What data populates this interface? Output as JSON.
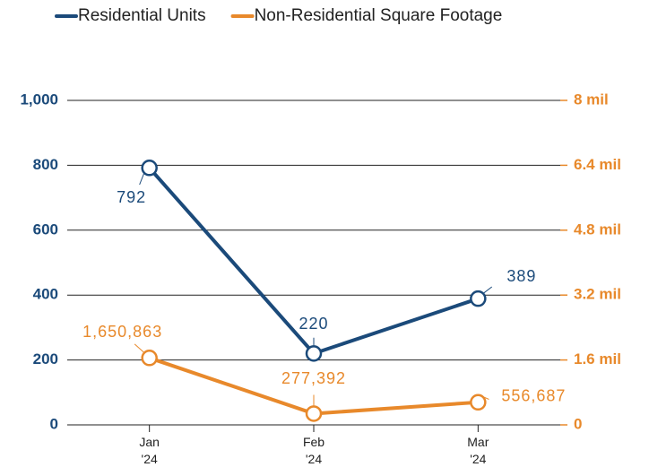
{
  "chart_data": {
    "type": "line",
    "categories": [
      "Jan '24",
      "Feb '24",
      "Mar '24"
    ],
    "series": [
      {
        "name": "Residential Units",
        "color": "#1b4a7a",
        "values": [
          792,
          220,
          389
        ]
      },
      {
        "name": "Non-Residential Square Footage",
        "color": "#e8892b",
        "axis": "y2",
        "values": [
          1650863,
          277392,
          556687
        ],
        "value_labels": [
          "1,650,863",
          "277,392",
          "556,687"
        ]
      }
    ],
    "ylim": [
      0,
      1000
    ],
    "yticks": [
      0,
      200,
      400,
      600,
      800,
      {
        "value": 1000,
        "label": "1,000"
      }
    ],
    "y2lim": [
      0,
      8000000
    ],
    "y2ticks": [
      0,
      {
        "value": 1600000,
        "label": "1.6 mil"
      },
      {
        "value": 3200000,
        "label": "3.2 mil"
      },
      {
        "value": 4800000,
        "label": "4.8 mil"
      },
      {
        "value": 6400000,
        "label": "6.4 mil"
      },
      {
        "value": 8000000,
        "label": "8 mil"
      }
    ],
    "grid": true
  }
}
